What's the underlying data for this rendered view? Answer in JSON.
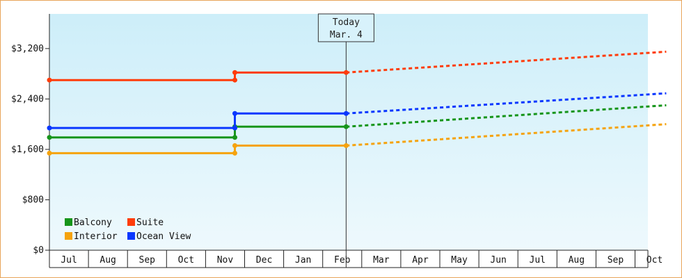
{
  "chart_data": {
    "type": "line",
    "y_ticks": [
      "$0",
      "$800",
      "$1,600",
      "$2,400",
      "$3,200"
    ],
    "y_tick_values": [
      0,
      800,
      1600,
      2400,
      3200
    ],
    "ylim": [
      0,
      3750
    ],
    "months": [
      "Jul",
      "Aug",
      "Sep",
      "Oct",
      "Nov",
      "Dec",
      "Jan",
      "Feb",
      "Mar",
      "Apr",
      "May",
      "Jun",
      "Jul",
      "Aug",
      "Sep",
      "Oct"
    ],
    "today": {
      "line1": "Today",
      "line2": "Mar. 4",
      "x": 7.6
    },
    "grid": false,
    "legend_placement": "bottom-left",
    "series": [
      {
        "name": "Balcony",
        "color": "#16951a",
        "segments": [
          [
            0,
            1790
          ],
          [
            4.75,
            1790
          ]
        ],
        "step": [
          [
            4.75,
            1960
          ],
          [
            7.6,
            1960
          ]
        ],
        "forecast": [
          [
            7.6,
            1960
          ],
          [
            15.8,
            2300
          ]
        ]
      },
      {
        "name": "Suite",
        "color": "#ff3c0a",
        "segments": [
          [
            0,
            2700
          ],
          [
            4.75,
            2700
          ]
        ],
        "step": [
          [
            4.75,
            2820
          ],
          [
            7.6,
            2820
          ]
        ],
        "forecast": [
          [
            7.6,
            2820
          ],
          [
            15.8,
            3150
          ]
        ]
      },
      {
        "name": "Interior",
        "color": "#f5a30e",
        "segments": [
          [
            0,
            1540
          ],
          [
            4.75,
            1540
          ]
        ],
        "step": [
          [
            4.75,
            1660
          ],
          [
            7.6,
            1660
          ]
        ],
        "forecast": [
          [
            7.6,
            1660
          ],
          [
            15.8,
            2000
          ]
        ]
      },
      {
        "name": "Ocean View",
        "color": "#0a37ff",
        "segments": [
          [
            0,
            1940
          ],
          [
            4.75,
            1940
          ]
        ],
        "step": [
          [
            4.75,
            2170
          ],
          [
            7.6,
            2170
          ]
        ],
        "forecast": [
          [
            7.6,
            2170
          ],
          [
            15.8,
            2490
          ]
        ]
      }
    ]
  }
}
